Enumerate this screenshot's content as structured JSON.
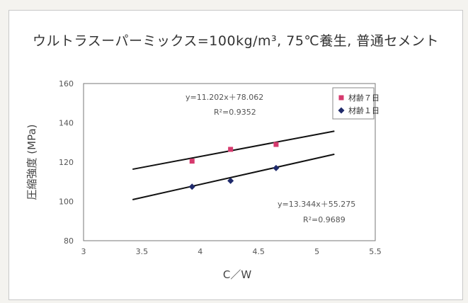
{
  "chart_data": {
    "type": "scatter",
    "title": "ウルトラスーパーミックス=100kg/m³, 75℃養生, 普通セメント",
    "xlabel": "C／W",
    "ylabel": "圧縮強度 (MPa)",
    "xlim": [
      3,
      5.5
    ],
    "ylim": [
      80,
      160
    ],
    "x_ticks": [
      "3",
      "3.5",
      "4",
      "4.5",
      "5",
      "5.5"
    ],
    "y_ticks": [
      "80",
      "100",
      "120",
      "140",
      "160"
    ],
    "grid": false,
    "legend_position": "top-right",
    "series": [
      {
        "name": "材齢７日",
        "marker": "square",
        "color": "#d63a6e",
        "points": [
          [
            3.93,
            120.5
          ],
          [
            4.26,
            126.5
          ],
          [
            4.65,
            129.0
          ]
        ],
        "trendline": {
          "slope": 11.202,
          "intercept": 78.062,
          "x_range": [
            3.42,
            5.15
          ]
        },
        "equation": "y=11.202x＋78.062",
        "r2": "R²=0.9352"
      },
      {
        "name": "材齢１日",
        "marker": "diamond",
        "color": "#1f2a6b",
        "points": [
          [
            3.93,
            107.5
          ],
          [
            4.26,
            110.5
          ],
          [
            4.65,
            117.0
          ]
        ],
        "trendline": {
          "slope": 13.344,
          "intercept": 55.275,
          "x_range": [
            3.42,
            5.15
          ]
        },
        "equation": "y=13.344x＋55.275",
        "r2": "R²=0.9689"
      }
    ]
  },
  "colors": {
    "line": "#111111",
    "plot_border": "#777777"
  }
}
